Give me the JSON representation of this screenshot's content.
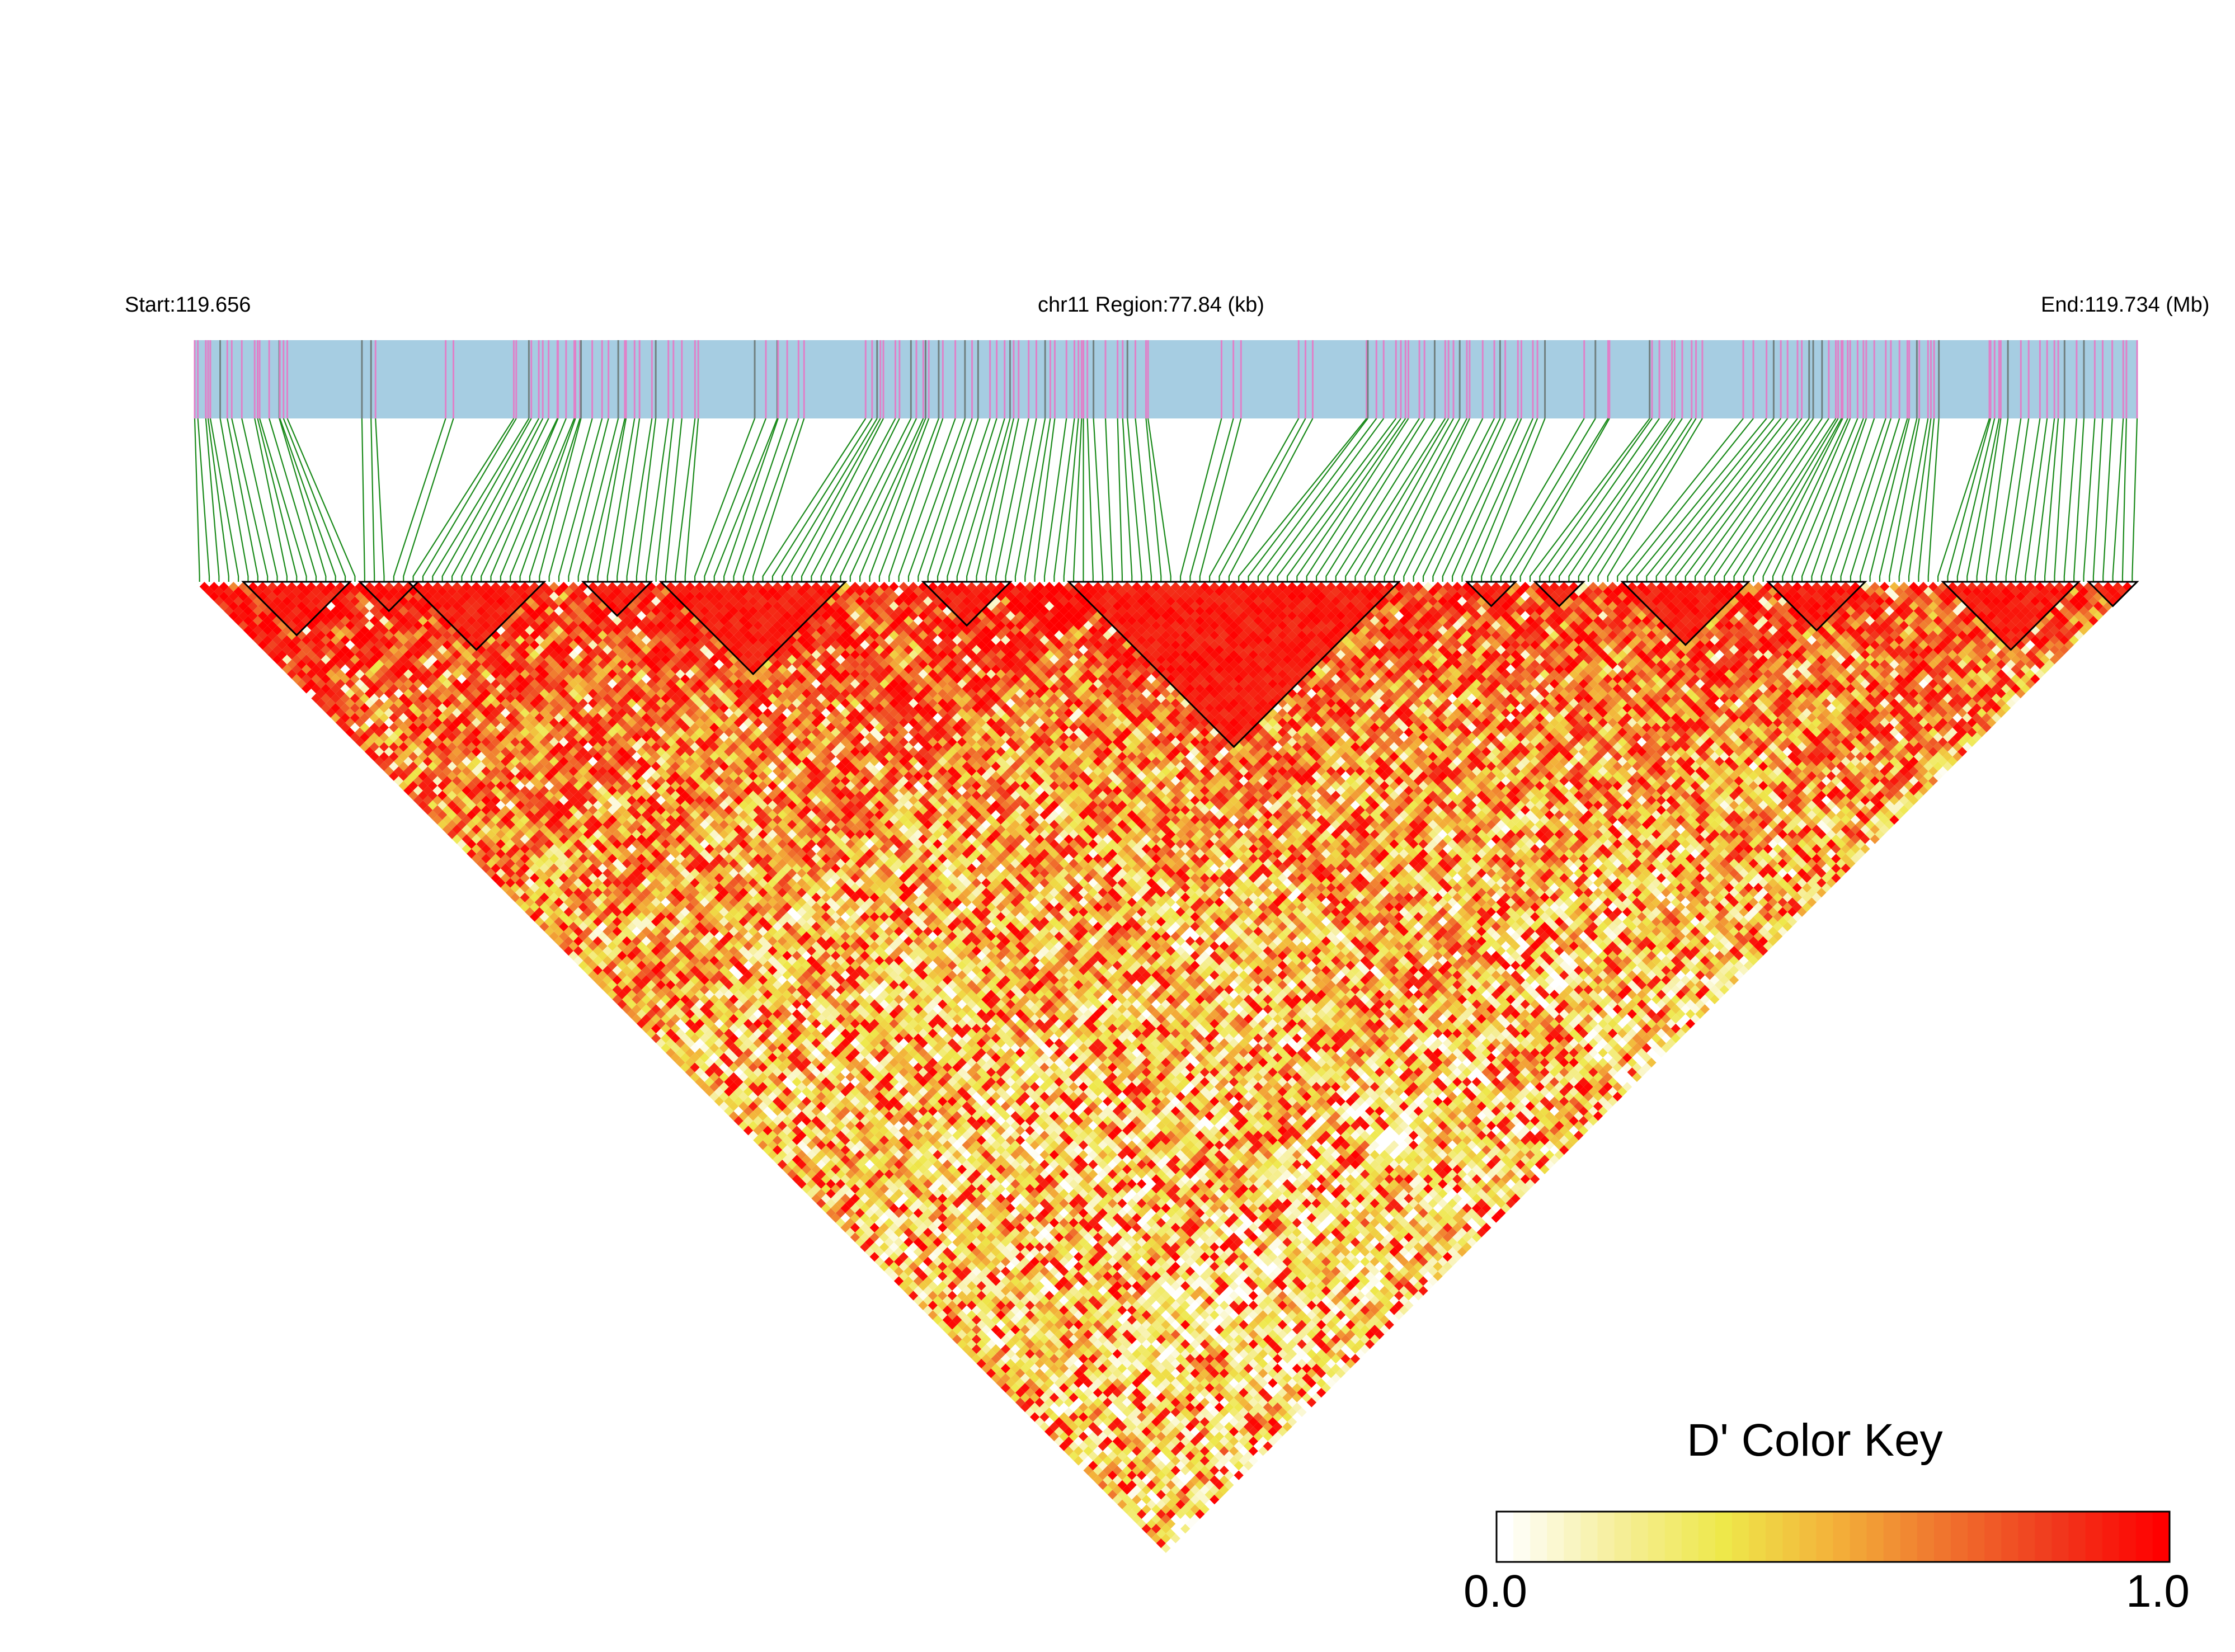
{
  "chart_data": {
    "type": "heatmap",
    "subtype": "linkage-disequilibrium-triangle",
    "chromosome": "chr11",
    "start_label": "Start:119.656",
    "region_label": "chr11 Region:77.84 (kb)",
    "end_label": "End:119.734 (Mb)",
    "start_mb": 119.656,
    "end_mb": 119.734,
    "region_kb": 77.84,
    "n_snps_approx": 200,
    "metric": "D'",
    "legend": {
      "title": "D' Color Key",
      "min_label": "0.0",
      "max_label": "1.0",
      "min": 0.0,
      "max": 1.0,
      "placement": "bottom-right",
      "colors": [
        "#ffffff",
        "#f6ef9c",
        "#eee84a",
        "#f3b23a",
        "#f0752e",
        "#f03a1e",
        "#ff0000"
      ]
    },
    "track_colors": {
      "band": "#a6cde2",
      "tick_major": "#e080c8",
      "tick_minor": "#708080",
      "connector": "#1a8a1a",
      "block_outline": "#000000"
    },
    "pattern_note_values": {
      "strong_ld_fraction_top_rows": 0.85
    }
  }
}
